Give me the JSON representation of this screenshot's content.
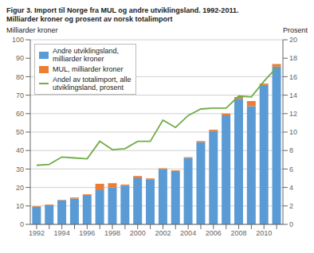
{
  "chart_data": {
    "type": "bar",
    "title": "Figur 3. Import til Norge fra MUL og andre utviklingsland. 1992-2011.",
    "subtitle": "Milliarder kroner og prosent av norsk totalimport",
    "ylabel": "Milliarder kroner",
    "y2label": "Prosent",
    "categories": [
      "1992",
      null,
      "1994",
      null,
      "1996",
      null,
      "1998",
      null,
      "2000",
      null,
      "2002",
      null,
      "2004",
      null,
      "2006",
      null,
      "2008",
      null,
      "2010",
      null
    ],
    "series": [
      {
        "name": "Andre utviklingsland,\nmilliarder kroner",
        "type": "bar",
        "color": "#5B9BD5",
        "values": [
          9.5,
          10.5,
          13.0,
          14.0,
          15.5,
          18.5,
          20.0,
          21.0,
          25.0,
          24.5,
          30.0,
          29.0,
          36.0,
          44.5,
          50.5,
          59.0,
          68.0,
          64.0,
          75.5,
          85.5
        ]
      },
      {
        "name": "MUL, milliarder kroner",
        "type": "bar",
        "color": "#ED7D31",
        "values": [
          0.3,
          0.3,
          0.3,
          0.5,
          0.8,
          3.5,
          2.3,
          0.6,
          1.2,
          0.4,
          0.4,
          0.3,
          0.4,
          0.7,
          0.8,
          1.0,
          1.0,
          2.8,
          0.8,
          1.3
        ]
      },
      {
        "name": "Andel av totalimport, alle\nutviklingsland, prosent",
        "type": "line",
        "color": "#70AD47",
        "axis": "y2",
        "values": [
          6.4,
          6.5,
          7.3,
          7.2,
          7.1,
          9.0,
          8.1,
          8.2,
          9.0,
          9.0,
          11.3,
          10.5,
          11.8,
          12.5,
          12.6,
          12.6,
          13.9,
          13.8,
          15.5,
          17.0
        ]
      }
    ],
    "stacked": true,
    "ylim": [
      0,
      100
    ],
    "yticks": [
      0,
      10,
      20,
      30,
      40,
      50,
      60,
      70,
      80,
      90,
      100
    ],
    "y2lim": [
      0,
      20
    ],
    "y2ticks": [
      0,
      2,
      4,
      6,
      8,
      10,
      12,
      14,
      16,
      18,
      20
    ],
    "grid": true,
    "legend": "upper left"
  }
}
